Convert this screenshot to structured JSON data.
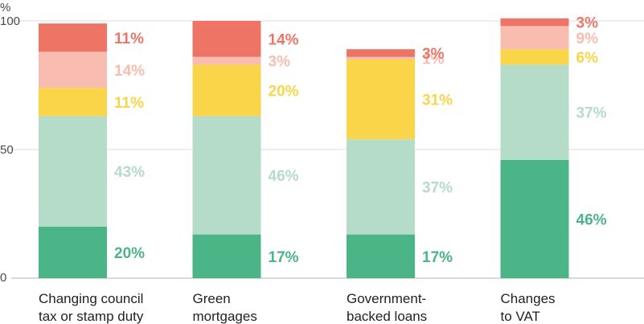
{
  "chart_data": {
    "type": "bar",
    "stacked": true,
    "ylabel": "%",
    "ylim": [
      0,
      100
    ],
    "yticks": [
      0,
      50,
      100
    ],
    "grid": true,
    "categories": [
      [
        "Changing council",
        "tax or stamp duty"
      ],
      [
        "Green",
        "mortgages"
      ],
      [
        "Government-",
        "backed loans"
      ],
      [
        "Changes",
        "to VAT"
      ]
    ],
    "series": [
      {
        "name": "segment-1",
        "color": "#4bb587",
        "values": [
          20,
          17,
          17,
          46
        ],
        "labels": [
          "20%",
          "17%",
          "17%",
          "46%"
        ]
      },
      {
        "name": "segment-2",
        "color": "#b5dcc8",
        "values": [
          43,
          46,
          37,
          37
        ],
        "labels": [
          "43%",
          "46%",
          "37%",
          "37%"
        ]
      },
      {
        "name": "segment-3",
        "color": "#fad54a",
        "values": [
          11,
          20,
          31,
          6
        ],
        "labels": [
          "11%",
          "20%",
          "31%",
          "6%"
        ]
      },
      {
        "name": "segment-4",
        "color": "#f8bcb0",
        "values": [
          14,
          3,
          1,
          9
        ],
        "labels": [
          "14%",
          "3%",
          "1%",
          "9%"
        ]
      },
      {
        "name": "segment-5",
        "color": "#ee7566",
        "values": [
          11,
          14,
          3,
          3
        ],
        "labels": [
          "11%",
          "14%",
          "3%",
          "3%"
        ]
      }
    ],
    "axis_color": "#b6b6b6",
    "grid_color": "#dddddd"
  }
}
